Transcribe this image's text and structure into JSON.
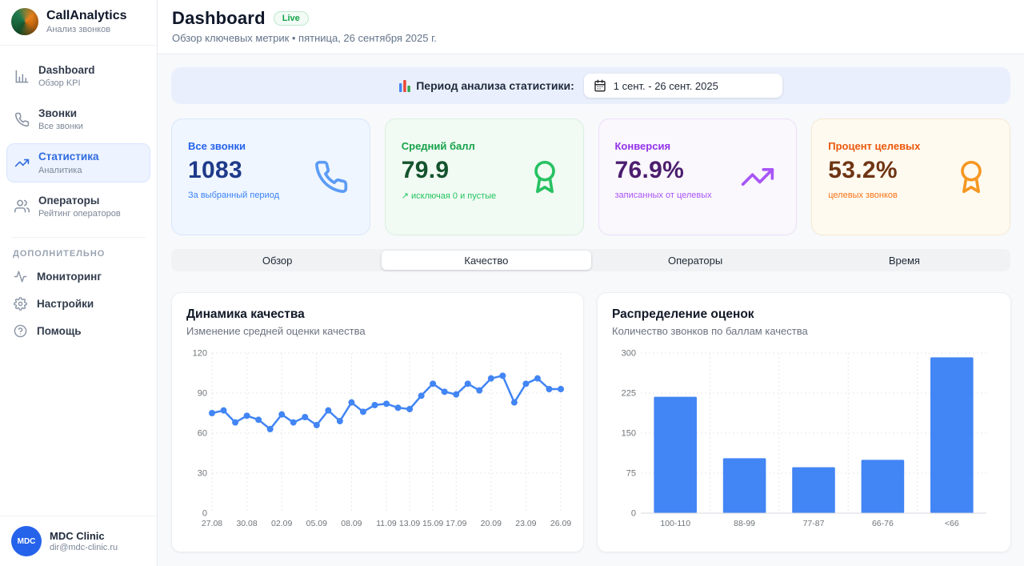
{
  "brand": {
    "name": "CallAnalytics",
    "subtitle": "Анализ звонков"
  },
  "sidebar": {
    "items": [
      {
        "label": "Dashboard",
        "sublabel": "Обзор KPI",
        "icon": "bar-chart-icon",
        "active": false
      },
      {
        "label": "Звонки",
        "sublabel": "Все звонки",
        "icon": "phone-icon",
        "active": false
      },
      {
        "label": "Статистика",
        "sublabel": "Аналитика",
        "icon": "trending-up-icon",
        "active": true
      },
      {
        "label": "Операторы",
        "sublabel": "Рейтинг операторов",
        "icon": "users-icon",
        "active": false
      }
    ],
    "section_label": "ДОПОЛНИТЕЛЬНО",
    "extra_items": [
      {
        "label": "Мониторинг",
        "icon": "activity-icon"
      },
      {
        "label": "Настройки",
        "icon": "gear-icon"
      },
      {
        "label": "Помощь",
        "icon": "help-icon"
      }
    ]
  },
  "user": {
    "initials": "MDC",
    "name": "MDC Clinic",
    "email": "dir@mdc-clinic.ru"
  },
  "header": {
    "title": "Dashboard",
    "badge": "Live",
    "subtitle": "Обзор ключевых метрик • пятница, 26 сентября 2025 г."
  },
  "period": {
    "label": "Период анализа статистики:",
    "value": "1 сент. - 26 сент. 2025"
  },
  "kpis": [
    {
      "label": "Все звонки",
      "value": "1083",
      "note": "За выбранный период",
      "icon": "phone-icon",
      "accent": "#2563eb"
    },
    {
      "label": "Средний балл",
      "value": "79.9",
      "note": "↗ исключая 0 и пустые",
      "icon": "award-icon",
      "accent": "#16a34a"
    },
    {
      "label": "Конверсия",
      "value": "76.9%",
      "note": "записанных от целевых",
      "icon": "trending-up-icon",
      "accent": "#9333ea"
    },
    {
      "label": "Процент целевых",
      "value": "53.2%",
      "note": "целевых звонков",
      "icon": "award-icon",
      "accent": "#ea580c"
    }
  ],
  "tabs": [
    {
      "label": "Обзор",
      "active": false
    },
    {
      "label": "Качество",
      "active": true
    },
    {
      "label": "Операторы",
      "active": false
    },
    {
      "label": "Время",
      "active": false
    }
  ],
  "chart_data": [
    {
      "type": "line",
      "title": "Динамика качества",
      "subtitle": "Изменение средней оценки качества",
      "ylabel": "",
      "xlabel": "",
      "ylim": [
        0,
        120
      ],
      "yticks": [
        0,
        30,
        60,
        90,
        120
      ],
      "grid": true,
      "legend": "none",
      "line_color": "#4285f4",
      "values": [
        75,
        77,
        68,
        73,
        70,
        63,
        74,
        68,
        72,
        66,
        77,
        69,
        83,
        76,
        81,
        82,
        79,
        78,
        88,
        97,
        91,
        89,
        97,
        92,
        101,
        103,
        83,
        97,
        101,
        93,
        93
      ],
      "x_ticks": [
        {
          "label": "27.08",
          "index": 0
        },
        {
          "label": "30.08",
          "index": 3
        },
        {
          "label": "02.09",
          "index": 6
        },
        {
          "label": "05.09",
          "index": 9
        },
        {
          "label": "08.09",
          "index": 12
        },
        {
          "label": "11.09",
          "index": 15
        },
        {
          "label": "13.09",
          "index": 17
        },
        {
          "label": "15.09",
          "index": 19
        },
        {
          "label": "17.09",
          "index": 21
        },
        {
          "label": "20.09",
          "index": 24
        },
        {
          "label": "23.09",
          "index": 27
        },
        {
          "label": "26.09",
          "index": 30
        }
      ]
    },
    {
      "type": "bar",
      "title": "Распределение оценок",
      "subtitle": "Количество звонков по баллам качества",
      "ylabel": "",
      "xlabel": "",
      "categories": [
        "100-110",
        "88-99",
        "77-87",
        "66-76",
        "<66"
      ],
      "values": [
        218,
        103,
        86,
        100,
        292
      ],
      "ylim": [
        0,
        300
      ],
      "yticks": [
        0,
        75,
        150,
        225,
        300
      ],
      "grid": true,
      "legend": "none",
      "bar_color": "#4285f4"
    }
  ]
}
